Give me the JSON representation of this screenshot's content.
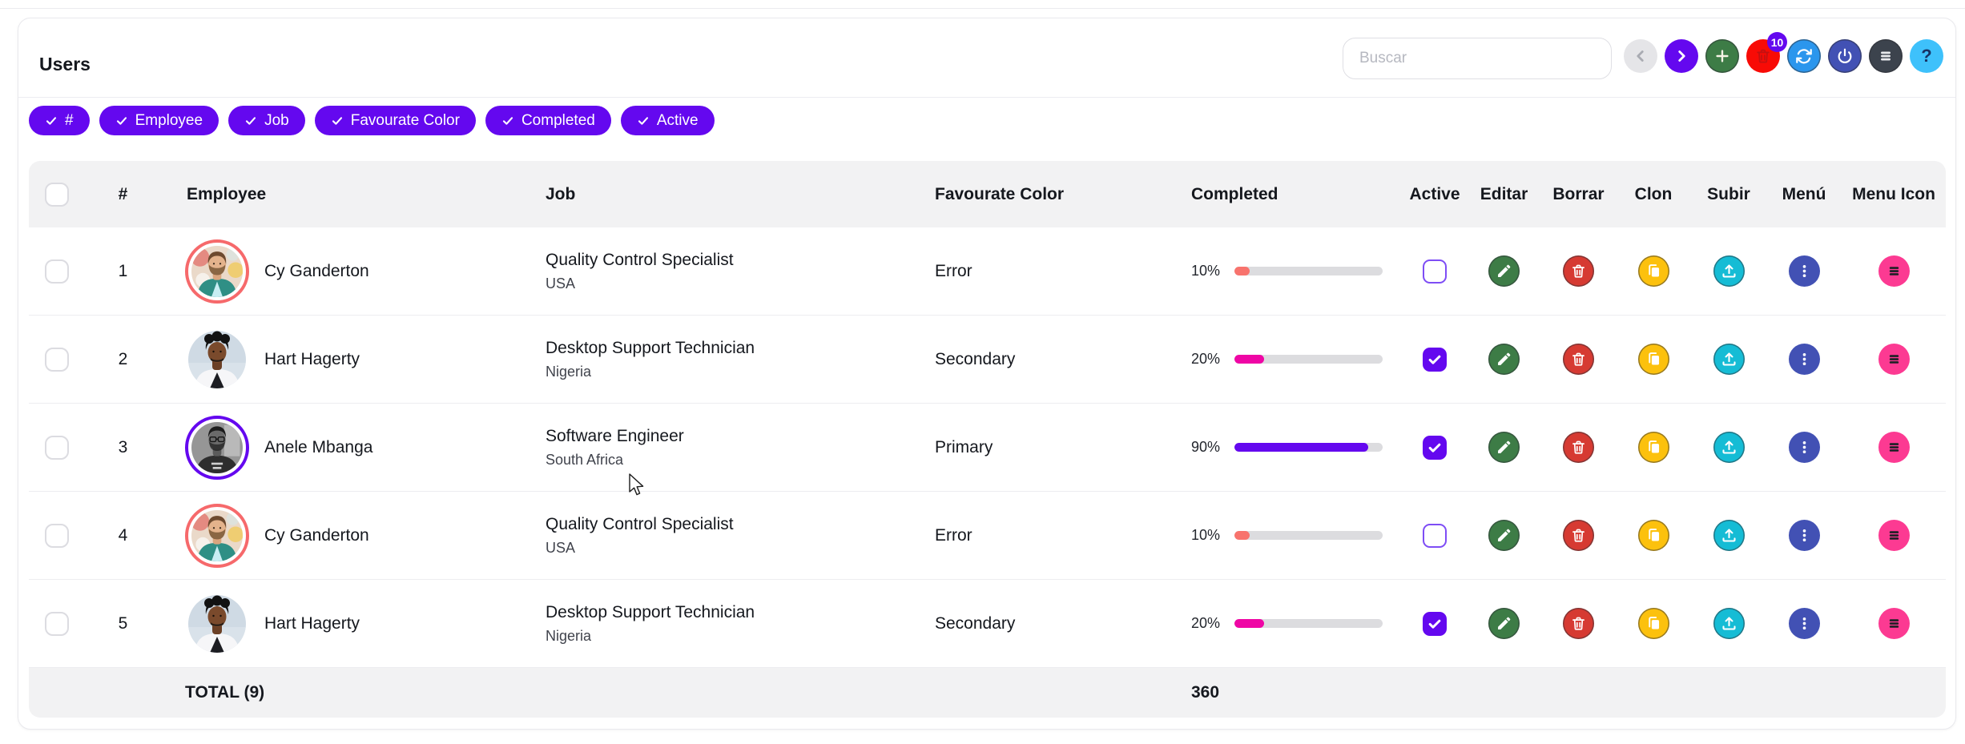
{
  "app": {
    "title": "Users"
  },
  "colors": {
    "primary": "#6408ef",
    "progress_track": "#dcdcdf",
    "header_footer_bg": "#f2f2f3"
  },
  "toolbar": {
    "search": {
      "placeholder": "Buscar"
    },
    "buttons": [
      {
        "name": "prev",
        "icon": "chevron-left",
        "color": "#e5e5e8",
        "disabled": true
      },
      {
        "name": "next",
        "icon": "chevron-right",
        "color": "#6408ef"
      },
      {
        "name": "add",
        "icon": "plus",
        "color": "#3d7c46"
      },
      {
        "name": "delete",
        "icon": "trash",
        "color": "#f80b06",
        "badge": "10"
      },
      {
        "name": "refresh",
        "icon": "sync",
        "color": "#2b96ed"
      },
      {
        "name": "power",
        "icon": "power",
        "color": "#4251b4"
      },
      {
        "name": "list-menu",
        "icon": "hamburger",
        "color": "#3c434d"
      },
      {
        "name": "help",
        "icon": "question",
        "color": "#3ec1fb"
      }
    ]
  },
  "filters": {
    "color": "#6408ef",
    "items": [
      {
        "label": "#"
      },
      {
        "label": "Employee"
      },
      {
        "label": "Job"
      },
      {
        "label": "Favourate Color"
      },
      {
        "label": "Completed"
      },
      {
        "label": "Active"
      }
    ]
  },
  "table": {
    "headers": {
      "num": "#",
      "employee": "Employee",
      "job": "Job",
      "color": "Favourate Color",
      "completed": "Completed",
      "active": "Active",
      "edit": "Editar",
      "delete": "Borrar",
      "clone": "Clon",
      "upload": "Subir",
      "menu": "Menú",
      "menu_icon": "Menu Icon"
    },
    "actions": [
      {
        "name": "edit",
        "icon": "pencil",
        "color": "#3d7c46"
      },
      {
        "name": "delete",
        "icon": "trash",
        "color": "#d63a32"
      },
      {
        "name": "clone",
        "icon": "copy",
        "color": "#fcc10d"
      },
      {
        "name": "upload",
        "icon": "upload",
        "color": "#15bcd5"
      },
      {
        "name": "menu",
        "icon": "kebab",
        "color": "#4251b4"
      },
      {
        "name": "menu-icon",
        "icon": "hamburger",
        "color": "#fc3a92",
        "icon_color": "#1d2025"
      }
    ],
    "rows": [
      {
        "num": "1",
        "employee": "Cy Ganderton",
        "avatar": "cy",
        "ring": "#f6696b",
        "job": "Quality Control Specialist",
        "country": "USA",
        "favourate_color": "Error",
        "completed_label": "10%",
        "completed": 10,
        "bar_color": "#f8736d",
        "active": false
      },
      {
        "num": "2",
        "employee": "Hart Hagerty",
        "avatar": "hart",
        "ring": null,
        "job": "Desktop Support Technician",
        "country": "Nigeria",
        "favourate_color": "Secondary",
        "completed_label": "20%",
        "completed": 20,
        "bar_color": "#ef06a5",
        "active": true
      },
      {
        "num": "3",
        "employee": "Anele Mbanga",
        "avatar": "anele",
        "ring": "#6408ef",
        "job": "Software Engineer",
        "country": "South Africa",
        "favourate_color": "Primary",
        "completed_label": "90%",
        "completed": 90,
        "bar_color": "#6408ef",
        "active": true
      },
      {
        "num": "4",
        "employee": "Cy Ganderton",
        "avatar": "cy",
        "ring": "#f6696b",
        "job": "Quality Control Specialist",
        "country": "USA",
        "favourate_color": "Error",
        "completed_label": "10%",
        "completed": 10,
        "bar_color": "#f8736d",
        "active": false
      },
      {
        "num": "5",
        "employee": "Hart Hagerty",
        "avatar": "hart",
        "ring": null,
        "job": "Desktop Support Technician",
        "country": "Nigeria",
        "favourate_color": "Secondary",
        "completed_label": "20%",
        "completed": 20,
        "bar_color": "#ef06a5",
        "active": true
      }
    ],
    "footer": {
      "total_label": "TOTAL (9)",
      "completed_total": "360"
    }
  }
}
